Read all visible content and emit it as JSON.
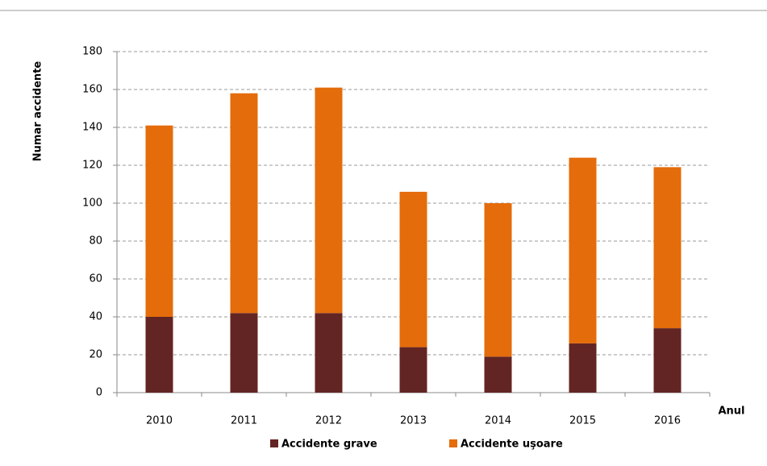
{
  "chart_data": {
    "type": "stacked-bar",
    "y_label": "Numar accidente",
    "x_label": "Anul",
    "categories": [
      "2010",
      "2011",
      "2012",
      "2013",
      "2014",
      "2015",
      "2016"
    ],
    "series": [
      {
        "name": "Accidente grave",
        "color": "#632523",
        "values": [
          40,
          42,
          42,
          24,
          19,
          26,
          34
        ]
      },
      {
        "name": "Accidente uşoare",
        "color": "#e46c0a",
        "values": [
          101,
          116,
          119,
          82,
          81,
          98,
          85
        ]
      }
    ],
    "ylim": [
      0,
      180
    ],
    "yticks": [
      0,
      20,
      40,
      60,
      80,
      100,
      120,
      140,
      160,
      180
    ],
    "grid": true
  }
}
